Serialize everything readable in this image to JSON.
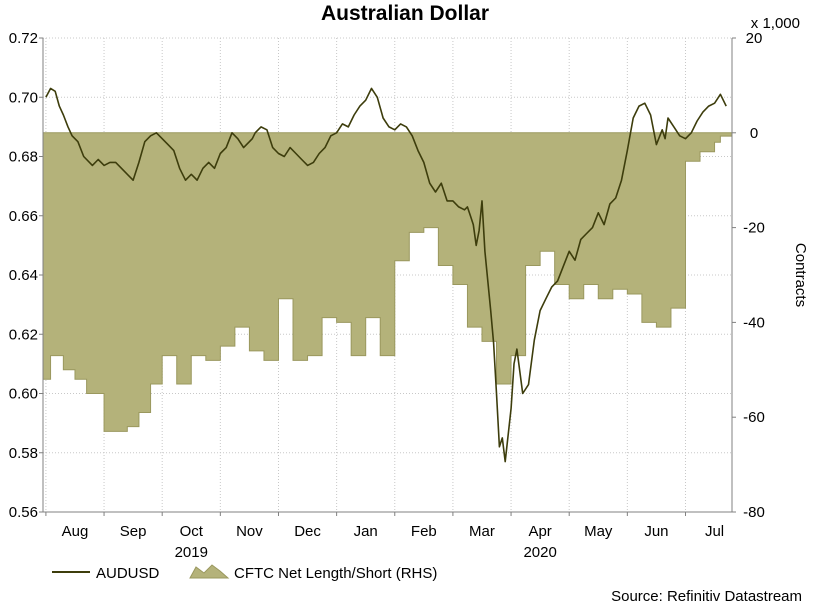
{
  "chart_data": {
    "type": "line",
    "title": "Australian Dollar",
    "right_axis_multiplier": "x 1,000",
    "ylabel_right": "Contracts",
    "source": "Source: Refinitiv Datastream",
    "years": [
      {
        "label": "2019",
        "month_index": 2
      },
      {
        "label": "2020",
        "month_index": 8
      }
    ],
    "x_months": [
      "Aug",
      "Sep",
      "Oct",
      "Nov",
      "Dec",
      "Jan",
      "Feb",
      "Mar",
      "Apr",
      "May",
      "Jun",
      "Jul"
    ],
    "x_range_months": [
      -0.55,
      11.3
    ],
    "left_axis": {
      "ylim": [
        0.56,
        0.72
      ],
      "ticks": [
        "0.56",
        "0.58",
        "0.60",
        "0.62",
        "0.64",
        "0.66",
        "0.68",
        "0.70",
        "0.72"
      ]
    },
    "right_axis": {
      "ylim": [
        -80,
        20
      ],
      "ticks": [
        "-80",
        "-60",
        "-40",
        "-20",
        "0",
        "20"
      ]
    },
    "grid": true,
    "legend_position": "bottom-left",
    "colors": {
      "line": "#3d3d0c",
      "area": "#b4b27a",
      "area_edge": "#9a985e",
      "grid": "#c8c8c8",
      "axis": "#808080"
    },
    "series": [
      {
        "name": "AUDUSD",
        "axis": "left",
        "style": "line",
        "x": [
          -0.5,
          -0.42,
          -0.34,
          -0.27,
          -0.2,
          -0.12,
          -0.05,
          0.05,
          0.15,
          0.3,
          0.4,
          0.5,
          0.6,
          0.7,
          0.85,
          1.0,
          1.1,
          1.2,
          1.3,
          1.4,
          1.5,
          1.6,
          1.7,
          1.8,
          1.9,
          2.0,
          2.05,
          2.1,
          2.2,
          2.3,
          2.4,
          2.5,
          2.6,
          2.7,
          2.8,
          2.9,
          3.0,
          3.05,
          3.1,
          3.2,
          3.3,
          3.4,
          3.5,
          3.6,
          3.7,
          3.8,
          3.9,
          4.0,
          4.1,
          4.2,
          4.3,
          4.4,
          4.5,
          4.6,
          4.7,
          4.8,
          4.9,
          5.0,
          5.1,
          5.2,
          5.3,
          5.4,
          5.5,
          5.6,
          5.7,
          5.8,
          5.9,
          6.0,
          6.1,
          6.2,
          6.3,
          6.4,
          6.5,
          6.6,
          6.7,
          6.75,
          6.8,
          6.85,
          6.9,
          6.95,
          7.0,
          7.05,
          7.1,
          7.15,
          7.2,
          7.25,
          7.3,
          7.35,
          7.4,
          7.5,
          7.55,
          7.6,
          7.7,
          7.8,
          7.9,
          8.0,
          8.1,
          8.2,
          8.3,
          8.4,
          8.5,
          8.6,
          8.7,
          8.8,
          8.9,
          9.0,
          9.1,
          9.2,
          9.3,
          9.4,
          9.5,
          9.6,
          9.7,
          9.8,
          9.9,
          10.0,
          10.1,
          10.15,
          10.2,
          10.3,
          10.4,
          10.5,
          10.6,
          10.7,
          10.8,
          10.9,
          11.0,
          11.1,
          11.2
        ],
        "values": [
          0.7,
          0.703,
          0.702,
          0.697,
          0.694,
          0.69,
          0.687,
          0.685,
          0.68,
          0.677,
          0.679,
          0.677,
          0.678,
          0.678,
          0.675,
          0.672,
          0.678,
          0.685,
          0.687,
          0.688,
          0.686,
          0.684,
          0.682,
          0.676,
          0.672,
          0.674,
          0.673,
          0.672,
          0.676,
          0.678,
          0.676,
          0.681,
          0.683,
          0.688,
          0.686,
          0.683,
          0.685,
          0.686,
          0.688,
          0.69,
          0.689,
          0.683,
          0.681,
          0.68,
          0.683,
          0.681,
          0.679,
          0.677,
          0.678,
          0.681,
          0.683,
          0.687,
          0.688,
          0.691,
          0.69,
          0.694,
          0.697,
          0.699,
          0.703,
          0.7,
          0.693,
          0.69,
          0.689,
          0.691,
          0.69,
          0.687,
          0.682,
          0.678,
          0.671,
          0.668,
          0.671,
          0.665,
          0.665,
          0.663,
          0.662,
          0.663,
          0.66,
          0.657,
          0.65,
          0.655,
          0.665,
          0.648,
          0.638,
          0.628,
          0.617,
          0.6,
          0.582,
          0.585,
          0.577,
          0.595,
          0.61,
          0.615,
          0.6,
          0.603,
          0.618,
          0.628,
          0.632,
          0.636,
          0.638,
          0.643,
          0.648,
          0.645,
          0.652,
          0.654,
          0.656,
          0.661,
          0.657,
          0.664,
          0.666,
          0.672,
          0.682,
          0.693,
          0.697,
          0.698,
          0.694,
          0.684,
          0.689,
          0.686,
          0.693,
          0.69,
          0.687,
          0.686,
          0.688,
          0.692,
          0.695,
          0.697,
          0.698,
          0.701,
          0.697
        ]
      },
      {
        "name": "CFTC Net Length/Short (RHS)",
        "axis": "right",
        "style": "area",
        "x": [
          -0.55,
          -0.42,
          -0.2,
          0.0,
          0.2,
          0.5,
          0.7,
          0.9,
          1.1,
          1.3,
          1.5,
          1.75,
          2.0,
          2.25,
          2.5,
          2.75,
          3.0,
          3.25,
          3.5,
          3.75,
          4.0,
          4.25,
          4.5,
          4.75,
          5.0,
          5.25,
          5.5,
          5.75,
          6.0,
          6.25,
          6.5,
          6.75,
          7.0,
          7.25,
          7.5,
          7.75,
          8.0,
          8.25,
          8.5,
          8.75,
          9.0,
          9.25,
          9.5,
          9.75,
          10.0,
          10.25,
          10.5,
          10.75,
          11.0,
          11.1,
          11.3
        ],
        "values": [
          -52,
          -47,
          -50,
          -52,
          -55,
          -63,
          -63,
          -62,
          -59,
          -53,
          -47,
          -53,
          -47,
          -48,
          -45,
          -41,
          -46,
          -48,
          -35,
          -48,
          -47,
          -39,
          -40,
          -47,
          -39,
          -47,
          -27,
          -21,
          -20,
          -28,
          -32,
          -41,
          -44,
          -53,
          -47,
          -28,
          -25,
          -32,
          -35,
          -32,
          -35,
          -33,
          -34,
          -40,
          -41,
          -37,
          -6,
          -4,
          -2,
          -0.7,
          4
        ]
      }
    ]
  }
}
